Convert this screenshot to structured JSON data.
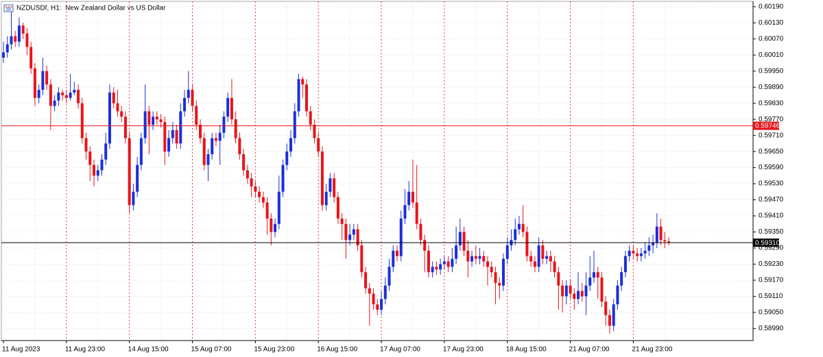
{
  "chart_data": {
    "type": "candlestick",
    "title": "NZDUSDf, H1:  New Zealand Dollar vs US Dollar",
    "bull_color": "#1b2fd8",
    "bear_color": "#e8141a",
    "grid": true,
    "ylim": [
      0.58945,
      0.6021
    ],
    "yticks": [
      {
        "value": 0.6019,
        "label": "0.60190"
      },
      {
        "value": 0.6013,
        "label": "0.60130"
      },
      {
        "value": 0.6007,
        "label": "0.60070"
      },
      {
        "value": 0.6001,
        "label": "0.60010"
      },
      {
        "value": 0.5995,
        "label": "0.59950"
      },
      {
        "value": 0.5989,
        "label": "0.59890"
      },
      {
        "value": 0.5983,
        "label": "0.59830"
      },
      {
        "value": 0.5977,
        "label": "0.59770"
      },
      {
        "value": 0.5971,
        "label": "0.59710"
      },
      {
        "value": 0.5965,
        "label": "0.59650"
      },
      {
        "value": 0.5959,
        "label": "0.59590"
      },
      {
        "value": 0.5953,
        "label": "0.59530"
      },
      {
        "value": 0.5947,
        "label": "0.59470"
      },
      {
        "value": 0.5941,
        "label": "0.59410"
      },
      {
        "value": 0.5935,
        "label": "0.59350"
      },
      {
        "value": 0.5929,
        "label": "0.59290"
      },
      {
        "value": 0.5923,
        "label": "0.59230"
      },
      {
        "value": 0.5917,
        "label": "0.59170"
      },
      {
        "value": 0.5911,
        "label": "0.59110"
      },
      {
        "value": 0.5905,
        "label": "0.59050"
      },
      {
        "value": 0.5899,
        "label": "0.58990"
      }
    ],
    "price_lines": [
      {
        "value": 0.59746,
        "color": "#e8141a"
      },
      {
        "value": 0.5931,
        "label": "0.59310",
        "color": "#000000"
      }
    ],
    "categories": [
      "11 Aug 2023",
      null,
      null,
      null,
      null,
      null,
      null,
      null,
      null,
      null,
      null,
      null,
      null,
      null,
      null,
      null,
      "11 Aug 23:00",
      null,
      null,
      null,
      null,
      null,
      null,
      null,
      null,
      null,
      null,
      null,
      null,
      null,
      null,
      null,
      "14 Aug 15:00",
      null,
      null,
      null,
      null,
      null,
      null,
      null,
      null,
      null,
      null,
      null,
      null,
      null,
      null,
      null,
      "15 Aug 07:00",
      null,
      null,
      null,
      null,
      null,
      null,
      null,
      null,
      null,
      null,
      null,
      null,
      null,
      null,
      null,
      "15 Aug 23:00",
      null,
      null,
      null,
      null,
      null,
      null,
      null,
      null,
      null,
      null,
      null,
      null,
      null,
      null,
      null,
      "16 Aug 15:00",
      null,
      null,
      null,
      null,
      null,
      null,
      null,
      null,
      null,
      null,
      null,
      null,
      null,
      null,
      null,
      "17 Aug 07:00",
      null,
      null,
      null,
      null,
      null,
      null,
      null,
      null,
      null,
      null,
      null,
      null,
      null,
      null,
      null,
      "17 Aug 23:00",
      null,
      null,
      null,
      null,
      null,
      null,
      null,
      null,
      null,
      null,
      null,
      null,
      null,
      null,
      null,
      "18 Aug 15:00",
      null,
      null,
      null,
      null,
      null,
      null,
      null,
      null,
      null,
      null,
      null,
      null,
      null,
      null,
      null,
      "21 Aug 07:00",
      null,
      null,
      null,
      null,
      null,
      null,
      null,
      null,
      null,
      null,
      null,
      null,
      null,
      null,
      null,
      "21 Aug 23:00",
      null,
      null,
      null,
      null,
      null,
      null,
      null,
      null,
      null
    ],
    "candles": [
      [
        0.6,
        0.6006,
        0.5998,
        0.6002
      ],
      [
        0.6002,
        0.6008,
        0.6,
        0.6005
      ],
      [
        0.6005,
        0.6017,
        0.6003,
        0.6008
      ],
      [
        0.6008,
        0.601,
        0.6004,
        0.6006
      ],
      [
        0.6006,
        0.6015,
        0.6004,
        0.6012
      ],
      [
        0.6012,
        0.6013,
        0.6007,
        0.6009
      ],
      [
        0.6009,
        0.6011,
        0.6001,
        0.6004
      ],
      [
        0.6004,
        0.6006,
        0.5994,
        0.5996
      ],
      [
        0.5996,
        0.5998,
        0.5982,
        0.5985
      ],
      [
        0.5985,
        0.599,
        0.5983,
        0.5988
      ],
      [
        0.5988,
        0.6,
        0.5986,
        0.5995
      ],
      [
        0.5995,
        0.5997,
        0.5988,
        0.599
      ],
      [
        0.599,
        0.5992,
        0.5973,
        0.5982
      ],
      [
        0.5982,
        0.5986,
        0.598,
        0.5984
      ],
      [
        0.5984,
        0.5989,
        0.5982,
        0.5987
      ],
      [
        0.5987,
        0.5988,
        0.5984,
        0.5986
      ],
      [
        0.5986,
        0.5988,
        0.5983,
        0.5985
      ],
      [
        0.5985,
        0.5994,
        0.5984,
        0.5987
      ],
      [
        0.5987,
        0.5991,
        0.5986,
        0.5988
      ],
      [
        0.5988,
        0.599,
        0.5981,
        0.5983
      ],
      [
        0.5983,
        0.5985,
        0.5968,
        0.597
      ],
      [
        0.597,
        0.5972,
        0.5962,
        0.5965
      ],
      [
        0.5965,
        0.5967,
        0.5954,
        0.596
      ],
      [
        0.596,
        0.5962,
        0.5952,
        0.5956
      ],
      [
        0.5956,
        0.596,
        0.5954,
        0.5958
      ],
      [
        0.5958,
        0.5964,
        0.5956,
        0.5962
      ],
      [
        0.5962,
        0.5972,
        0.596,
        0.5968
      ],
      [
        0.5968,
        0.599,
        0.5966,
        0.5987
      ],
      [
        0.5987,
        0.5989,
        0.5981,
        0.5983
      ],
      [
        0.5983,
        0.5988,
        0.5978,
        0.598
      ],
      [
        0.598,
        0.5982,
        0.5976,
        0.5978
      ],
      [
        0.5978,
        0.598,
        0.5968,
        0.597
      ],
      [
        0.597,
        0.5972,
        0.5942,
        0.5945
      ],
      [
        0.5945,
        0.5953,
        0.5943,
        0.595
      ],
      [
        0.595,
        0.5963,
        0.5948,
        0.596
      ],
      [
        0.596,
        0.5972,
        0.5958,
        0.597
      ],
      [
        0.597,
        0.599,
        0.5968,
        0.598
      ],
      [
        0.598,
        0.5982,
        0.5964,
        0.5975
      ],
      [
        0.5975,
        0.598,
        0.5973,
        0.5978
      ],
      [
        0.5978,
        0.598,
        0.5975,
        0.5977
      ],
      [
        0.5977,
        0.5979,
        0.5974,
        0.5976
      ],
      [
        0.5976,
        0.5978,
        0.596,
        0.5965
      ],
      [
        0.5965,
        0.5973,
        0.5963,
        0.597
      ],
      [
        0.597,
        0.5976,
        0.5968,
        0.5973
      ],
      [
        0.5973,
        0.5975,
        0.5966,
        0.5968
      ],
      [
        0.5968,
        0.5983,
        0.5966,
        0.598
      ],
      [
        0.598,
        0.5988,
        0.5978,
        0.5985
      ],
      [
        0.5985,
        0.5995,
        0.5983,
        0.5988
      ],
      [
        0.5988,
        0.599,
        0.598,
        0.5982
      ],
      [
        0.5982,
        0.5984,
        0.5973,
        0.5975
      ],
      [
        0.5975,
        0.5977,
        0.5968,
        0.597
      ],
      [
        0.597,
        0.5972,
        0.5958,
        0.596
      ],
      [
        0.596,
        0.5966,
        0.5954,
        0.5964
      ],
      [
        0.5964,
        0.5972,
        0.5962,
        0.597
      ],
      [
        0.597,
        0.5972,
        0.5967,
        0.5969
      ],
      [
        0.5969,
        0.5975,
        0.596,
        0.5972
      ],
      [
        0.5972,
        0.598,
        0.597,
        0.5978
      ],
      [
        0.5978,
        0.5987,
        0.5976,
        0.5985
      ],
      [
        0.5985,
        0.5992,
        0.5975,
        0.5977
      ],
      [
        0.5977,
        0.598,
        0.5968,
        0.597
      ],
      [
        0.597,
        0.5972,
        0.5962,
        0.5964
      ],
      [
        0.5964,
        0.5966,
        0.5956,
        0.5958
      ],
      [
        0.5958,
        0.596,
        0.5953,
        0.5955
      ],
      [
        0.5955,
        0.5957,
        0.5948,
        0.5952
      ],
      [
        0.5952,
        0.5954,
        0.5948,
        0.595
      ],
      [
        0.595,
        0.5952,
        0.5946,
        0.5948
      ],
      [
        0.5948,
        0.595,
        0.5944,
        0.5946
      ],
      [
        0.5946,
        0.5948,
        0.5934,
        0.594
      ],
      [
        0.594,
        0.5942,
        0.593,
        0.5935
      ],
      [
        0.5935,
        0.594,
        0.5933,
        0.5938
      ],
      [
        0.5938,
        0.5956,
        0.5936,
        0.595
      ],
      [
        0.595,
        0.5962,
        0.5948,
        0.596
      ],
      [
        0.596,
        0.5968,
        0.5958,
        0.5965
      ],
      [
        0.5965,
        0.5973,
        0.5963,
        0.597
      ],
      [
        0.597,
        0.5983,
        0.5968,
        0.598
      ],
      [
        0.598,
        0.5994,
        0.5978,
        0.5992
      ],
      [
        0.5992,
        0.5993,
        0.5985,
        0.599
      ],
      [
        0.599,
        0.5992,
        0.5978,
        0.598
      ],
      [
        0.598,
        0.5982,
        0.5973,
        0.5975
      ],
      [
        0.5975,
        0.5977,
        0.5968,
        0.597
      ],
      [
        0.597,
        0.5972,
        0.5963,
        0.5965
      ],
      [
        0.5965,
        0.5967,
        0.5943,
        0.5945
      ],
      [
        0.5945,
        0.5953,
        0.5943,
        0.595
      ],
      [
        0.595,
        0.5957,
        0.5948,
        0.5955
      ],
      [
        0.5955,
        0.5957,
        0.5946,
        0.5948
      ],
      [
        0.5948,
        0.595,
        0.5938,
        0.594
      ],
      [
        0.594,
        0.5942,
        0.5932,
        0.5938
      ],
      [
        0.5938,
        0.594,
        0.5925,
        0.5932
      ],
      [
        0.5932,
        0.5938,
        0.593,
        0.5934
      ],
      [
        0.5934,
        0.5938,
        0.5932,
        0.5936
      ],
      [
        0.5936,
        0.5938,
        0.5928,
        0.593
      ],
      [
        0.593,
        0.5932,
        0.5918,
        0.592
      ],
      [
        0.592,
        0.5922,
        0.5912,
        0.5914
      ],
      [
        0.5914,
        0.5916,
        0.59,
        0.5912
      ],
      [
        0.5912,
        0.5914,
        0.5906,
        0.5908
      ],
      [
        0.5908,
        0.591,
        0.5904,
        0.5906
      ],
      [
        0.5906,
        0.5913,
        0.5904,
        0.591
      ],
      [
        0.591,
        0.5918,
        0.5908,
        0.5915
      ],
      [
        0.5915,
        0.5925,
        0.5913,
        0.5922
      ],
      [
        0.5922,
        0.593,
        0.592,
        0.5928
      ],
      [
        0.5928,
        0.593,
        0.5924,
        0.5926
      ],
      [
        0.5926,
        0.5943,
        0.5924,
        0.594
      ],
      [
        0.594,
        0.5951,
        0.5938,
        0.5945
      ],
      [
        0.5945,
        0.5954,
        0.5943,
        0.595
      ],
      [
        0.595,
        0.5962,
        0.5944,
        0.5946
      ],
      [
        0.5946,
        0.596,
        0.5936,
        0.5938
      ],
      [
        0.5938,
        0.594,
        0.593,
        0.5932
      ],
      [
        0.5932,
        0.5934,
        0.592,
        0.5928
      ],
      [
        0.5928,
        0.593,
        0.5918,
        0.592
      ],
      [
        0.592,
        0.5924,
        0.5918,
        0.5922
      ],
      [
        0.5922,
        0.5924,
        0.5919,
        0.5921
      ],
      [
        0.5921,
        0.5925,
        0.5919,
        0.5923
      ],
      [
        0.5923,
        0.5926,
        0.5921,
        0.5924
      ],
      [
        0.5924,
        0.5926,
        0.592,
        0.5922
      ],
      [
        0.5922,
        0.5929,
        0.592,
        0.5925
      ],
      [
        0.5925,
        0.5937,
        0.5923,
        0.593
      ],
      [
        0.593,
        0.594,
        0.5928,
        0.5935
      ],
      [
        0.5935,
        0.5937,
        0.5926,
        0.5928
      ],
      [
        0.5928,
        0.5932,
        0.5918,
        0.5924
      ],
      [
        0.5924,
        0.5928,
        0.5922,
        0.5926
      ],
      [
        0.5926,
        0.593,
        0.5923,
        0.5925
      ],
      [
        0.5925,
        0.5929,
        0.5923,
        0.5926
      ],
      [
        0.5926,
        0.5928,
        0.5922,
        0.5924
      ],
      [
        0.5924,
        0.5926,
        0.5915,
        0.5922
      ],
      [
        0.5922,
        0.5924,
        0.5918,
        0.592
      ],
      [
        0.592,
        0.5922,
        0.5908,
        0.5916
      ],
      [
        0.5916,
        0.5918,
        0.591,
        0.5915
      ],
      [
        0.5915,
        0.5927,
        0.5913,
        0.5925
      ],
      [
        0.5925,
        0.5933,
        0.5923,
        0.593
      ],
      [
        0.593,
        0.5936,
        0.5928,
        0.5932
      ],
      [
        0.5932,
        0.594,
        0.593,
        0.5936
      ],
      [
        0.5936,
        0.5941,
        0.5934,
        0.5938
      ],
      [
        0.5938,
        0.5945,
        0.5933,
        0.5935
      ],
      [
        0.5935,
        0.5937,
        0.5924,
        0.5926
      ],
      [
        0.5926,
        0.5928,
        0.5922,
        0.5924
      ],
      [
        0.5924,
        0.5926,
        0.592,
        0.5922
      ],
      [
        0.5922,
        0.5933,
        0.592,
        0.593
      ],
      [
        0.593,
        0.5932,
        0.5923,
        0.5925
      ],
      [
        0.5925,
        0.5928,
        0.5923,
        0.5926
      ],
      [
        0.5926,
        0.5928,
        0.592,
        0.5924
      ],
      [
        0.5924,
        0.5926,
        0.5918,
        0.592
      ],
      [
        0.592,
        0.5922,
        0.5906,
        0.5915
      ],
      [
        0.5915,
        0.5917,
        0.5905,
        0.5911
      ],
      [
        0.5911,
        0.5917,
        0.5908,
        0.5915
      ],
      [
        0.5915,
        0.5917,
        0.591,
        0.5912
      ],
      [
        0.5912,
        0.5914,
        0.5906,
        0.591
      ],
      [
        0.591,
        0.592,
        0.5908,
        0.5913
      ],
      [
        0.5913,
        0.5916,
        0.5909,
        0.5911
      ],
      [
        0.5911,
        0.592,
        0.5904,
        0.5915
      ],
      [
        0.5915,
        0.5926,
        0.5913,
        0.5918
      ],
      [
        0.5918,
        0.5928,
        0.5916,
        0.592
      ],
      [
        0.592,
        0.5922,
        0.591,
        0.5918
      ],
      [
        0.5918,
        0.592,
        0.5907,
        0.5909
      ],
      [
        0.5909,
        0.5911,
        0.59,
        0.5904
      ],
      [
        0.5904,
        0.5906,
        0.5897,
        0.59
      ],
      [
        0.59,
        0.591,
        0.5898,
        0.5908
      ],
      [
        0.5908,
        0.5917,
        0.5906,
        0.5915
      ],
      [
        0.5915,
        0.5922,
        0.5913,
        0.592
      ],
      [
        0.592,
        0.5928,
        0.5918,
        0.5926
      ],
      [
        0.5926,
        0.593,
        0.5924,
        0.5928
      ],
      [
        0.5928,
        0.593,
        0.5925,
        0.5927
      ],
      [
        0.5927,
        0.5929,
        0.5924,
        0.5926
      ],
      [
        0.5926,
        0.5929,
        0.5924,
        0.5927
      ],
      [
        0.5927,
        0.5931,
        0.5925,
        0.5928
      ],
      [
        0.5928,
        0.5933,
        0.5926,
        0.593
      ],
      [
        0.593,
        0.5934,
        0.5927,
        0.5931
      ],
      [
        0.5931,
        0.5942,
        0.5929,
        0.5937
      ],
      [
        0.5937,
        0.594,
        0.593,
        0.5932
      ],
      [
        0.5932,
        0.5935,
        0.5929,
        0.59315
      ],
      [
        0.59315,
        0.5933,
        0.593,
        0.5931
      ]
    ]
  }
}
